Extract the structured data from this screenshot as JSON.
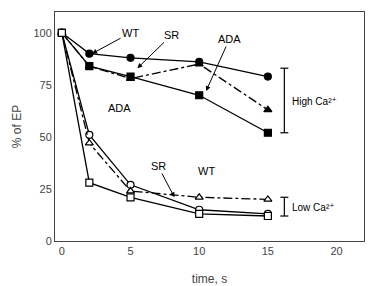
{
  "chart_data": {
    "type": "line",
    "xlabel": "time, s",
    "ylabel": "% of EP",
    "xlim": [
      -0.5,
      22
    ],
    "ylim": [
      0,
      110
    ],
    "xticks": [
      0,
      5,
      10,
      15,
      20
    ],
    "yticks": [
      0,
      25,
      50,
      75,
      100
    ],
    "grid": false,
    "x": [
      0,
      2,
      5,
      10,
      15
    ],
    "series": [
      {
        "color": "#000000",
        "marker": "circle",
        "line_style": "solid",
        "values": [
          100,
          90,
          88,
          86,
          79
        ]
      },
      {
        "color": "#000000",
        "marker": "triangle-up",
        "line_style": "dashdot",
        "values": [
          100,
          84,
          78,
          85,
          63
        ]
      },
      {
        "color": "#000000",
        "marker": "square",
        "line_style": "solid",
        "values": [
          100,
          84,
          79,
          70,
          52
        ]
      },
      {
        "color": "#000000",
        "marker": "circle-open",
        "line_style": "solid",
        "values": [
          100,
          51,
          27,
          15,
          13
        ]
      },
      {
        "color": "#000000",
        "marker": "triangle-up-open",
        "line_style": "dashdot",
        "values": [
          100,
          47,
          24,
          21,
          20
        ]
      },
      {
        "color": "#000000",
        "marker": "square-open",
        "line_style": "solid",
        "values": [
          100,
          28,
          21,
          13,
          12
        ]
      }
    ],
    "annotations": [
      {
        "text": "WT",
        "x": 5.0,
        "y": 100,
        "arrow_to": [
          2.2,
          90
        ]
      },
      {
        "text": "SR",
        "x": 8.0,
        "y": 99,
        "arrow_to": [
          5.5,
          83
        ]
      },
      {
        "text": "ADA",
        "x": 12.2,
        "y": 97,
        "arrow_to": [
          10.5,
          72
        ]
      },
      {
        "text": "ADA",
        "x": 3.2,
        "y": 60
      },
      {
        "text": "SR",
        "x": 7.0,
        "y": 36,
        "arrow_to": [
          8.2,
          21
        ]
      },
      {
        "text": "WT",
        "x": 9.8,
        "y": 30
      },
      {
        "text": "High Ca²⁺",
        "x": 16.2,
        "y": 67,
        "bracket": [
          52,
          83
        ]
      },
      {
        "text": "Low Ca²⁺",
        "x": 16.2,
        "y": 16,
        "bracket": [
          12,
          21
        ]
      }
    ]
  }
}
